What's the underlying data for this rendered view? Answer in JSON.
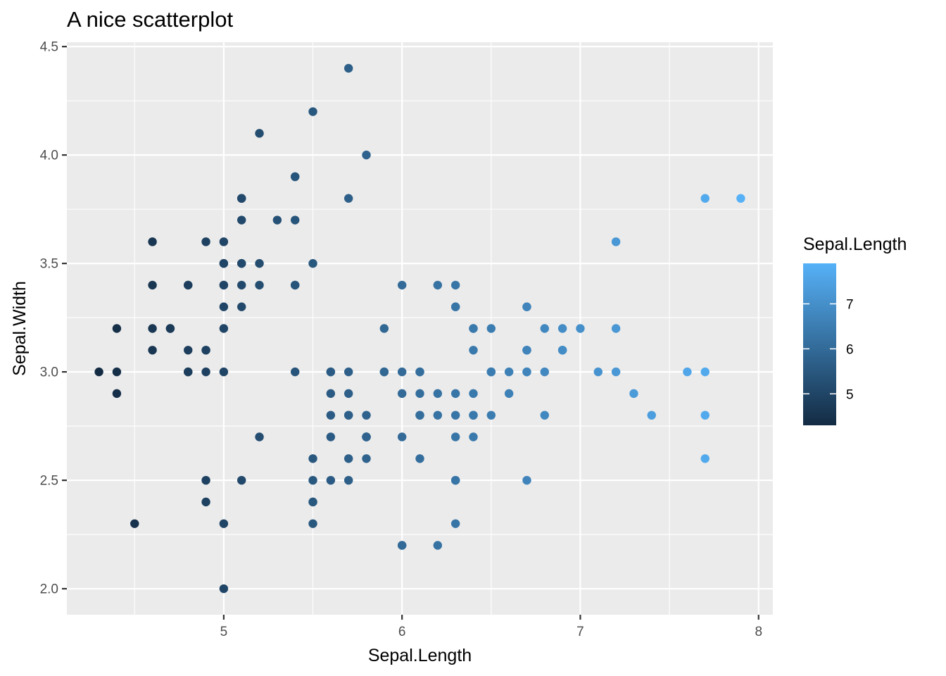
{
  "chart_data": {
    "type": "scatter",
    "title": "A nice scatterplot",
    "xlabel": "Sepal.Length",
    "ylabel": "Sepal.Width",
    "xlim": [
      4.12,
      8.08
    ],
    "ylim": [
      1.88,
      4.52
    ],
    "x_ticks": [
      "5",
      "6",
      "7",
      "8"
    ],
    "y_ticks": [
      "2.0",
      "2.5",
      "3.0",
      "3.5",
      "4.0",
      "4.5"
    ],
    "grid": true,
    "color_scale": {
      "variable": "Sepal.Length",
      "low_color": "#132B43",
      "high_color": "#56B1F7",
      "limits": [
        4.3,
        7.9
      ],
      "breaks": [
        "5",
        "6",
        "7"
      ],
      "legend_position": "right"
    },
    "points": [
      [
        5.1,
        3.5
      ],
      [
        4.9,
        3.0
      ],
      [
        4.7,
        3.2
      ],
      [
        4.6,
        3.1
      ],
      [
        5.0,
        3.6
      ],
      [
        5.4,
        3.9
      ],
      [
        4.6,
        3.4
      ],
      [
        5.0,
        3.4
      ],
      [
        4.4,
        2.9
      ],
      [
        4.9,
        3.1
      ],
      [
        5.4,
        3.7
      ],
      [
        4.8,
        3.4
      ],
      [
        4.8,
        3.0
      ],
      [
        4.3,
        3.0
      ],
      [
        5.8,
        4.0
      ],
      [
        5.7,
        4.4
      ],
      [
        5.4,
        3.9
      ],
      [
        5.1,
        3.5
      ],
      [
        5.7,
        3.8
      ],
      [
        5.1,
        3.8
      ],
      [
        5.4,
        3.4
      ],
      [
        5.1,
        3.7
      ],
      [
        4.6,
        3.6
      ],
      [
        5.1,
        3.3
      ],
      [
        4.8,
        3.4
      ],
      [
        5.0,
        3.0
      ],
      [
        5.0,
        3.4
      ],
      [
        5.2,
        3.5
      ],
      [
        5.2,
        3.4
      ],
      [
        4.7,
        3.2
      ],
      [
        4.8,
        3.1
      ],
      [
        5.4,
        3.4
      ],
      [
        5.2,
        4.1
      ],
      [
        5.5,
        4.2
      ],
      [
        4.9,
        3.1
      ],
      [
        5.0,
        3.2
      ],
      [
        5.5,
        3.5
      ],
      [
        4.9,
        3.6
      ],
      [
        4.4,
        3.0
      ],
      [
        5.1,
        3.4
      ],
      [
        5.0,
        3.5
      ],
      [
        4.5,
        2.3
      ],
      [
        4.4,
        3.2
      ],
      [
        5.0,
        3.5
      ],
      [
        5.1,
        3.8
      ],
      [
        4.8,
        3.0
      ],
      [
        5.1,
        3.8
      ],
      [
        4.6,
        3.2
      ],
      [
        5.3,
        3.7
      ],
      [
        5.0,
        3.3
      ],
      [
        7.0,
        3.2
      ],
      [
        6.4,
        3.2
      ],
      [
        6.9,
        3.1
      ],
      [
        5.5,
        2.3
      ],
      [
        6.5,
        2.8
      ],
      [
        5.7,
        2.8
      ],
      [
        6.3,
        3.3
      ],
      [
        4.9,
        2.4
      ],
      [
        6.6,
        2.9
      ],
      [
        5.2,
        2.7
      ],
      [
        5.0,
        2.0
      ],
      [
        5.9,
        3.0
      ],
      [
        6.0,
        2.2
      ],
      [
        6.1,
        2.9
      ],
      [
        5.6,
        2.9
      ],
      [
        6.7,
        3.1
      ],
      [
        5.6,
        3.0
      ],
      [
        5.8,
        2.7
      ],
      [
        6.2,
        2.2
      ],
      [
        5.6,
        2.5
      ],
      [
        5.9,
        3.2
      ],
      [
        6.1,
        2.8
      ],
      [
        6.3,
        2.5
      ],
      [
        6.1,
        2.8
      ],
      [
        6.4,
        2.9
      ],
      [
        6.6,
        3.0
      ],
      [
        6.8,
        2.8
      ],
      [
        6.7,
        3.0
      ],
      [
        6.0,
        2.9
      ],
      [
        5.7,
        2.6
      ],
      [
        5.5,
        2.4
      ],
      [
        5.5,
        2.4
      ],
      [
        5.8,
        2.7
      ],
      [
        6.0,
        2.7
      ],
      [
        5.4,
        3.0
      ],
      [
        6.0,
        3.4
      ],
      [
        6.7,
        3.1
      ],
      [
        6.3,
        2.3
      ],
      [
        5.6,
        3.0
      ],
      [
        5.5,
        2.5
      ],
      [
        5.5,
        2.6
      ],
      [
        6.1,
        3.0
      ],
      [
        5.8,
        2.6
      ],
      [
        5.0,
        2.3
      ],
      [
        5.6,
        2.7
      ],
      [
        5.7,
        3.0
      ],
      [
        5.7,
        2.9
      ],
      [
        6.2,
        2.9
      ],
      [
        5.1,
        2.5
      ],
      [
        5.7,
        2.8
      ],
      [
        6.3,
        3.3
      ],
      [
        5.8,
        2.7
      ],
      [
        7.1,
        3.0
      ],
      [
        6.3,
        2.9
      ],
      [
        6.5,
        3.0
      ],
      [
        7.6,
        3.0
      ],
      [
        4.9,
        2.5
      ],
      [
        7.3,
        2.9
      ],
      [
        6.7,
        2.5
      ],
      [
        7.2,
        3.6
      ],
      [
        6.5,
        3.2
      ],
      [
        6.4,
        2.7
      ],
      [
        6.8,
        3.0
      ],
      [
        5.7,
        2.5
      ],
      [
        5.8,
        2.8
      ],
      [
        6.4,
        3.2
      ],
      [
        6.5,
        3.0
      ],
      [
        7.7,
        3.8
      ],
      [
        7.7,
        2.6
      ],
      [
        6.0,
        2.2
      ],
      [
        6.9,
        3.2
      ],
      [
        5.6,
        2.8
      ],
      [
        7.7,
        2.8
      ],
      [
        6.3,
        2.7
      ],
      [
        6.7,
        3.3
      ],
      [
        7.2,
        3.2
      ],
      [
        6.2,
        2.8
      ],
      [
        6.1,
        3.0
      ],
      [
        6.4,
        2.8
      ],
      [
        7.2,
        3.0
      ],
      [
        7.4,
        2.8
      ],
      [
        7.9,
        3.8
      ],
      [
        6.4,
        2.8
      ],
      [
        6.3,
        2.8
      ],
      [
        6.1,
        2.6
      ],
      [
        7.7,
        3.0
      ],
      [
        6.3,
        3.4
      ],
      [
        6.4,
        3.1
      ],
      [
        6.0,
        3.0
      ],
      [
        6.9,
        3.1
      ],
      [
        6.7,
        3.1
      ],
      [
        6.9,
        3.1
      ],
      [
        5.8,
        2.7
      ],
      [
        6.8,
        3.2
      ],
      [
        6.7,
        3.3
      ],
      [
        6.7,
        3.0
      ],
      [
        6.3,
        2.5
      ],
      [
        6.5,
        3.0
      ],
      [
        6.2,
        3.4
      ],
      [
        5.9,
        3.0
      ]
    ]
  }
}
